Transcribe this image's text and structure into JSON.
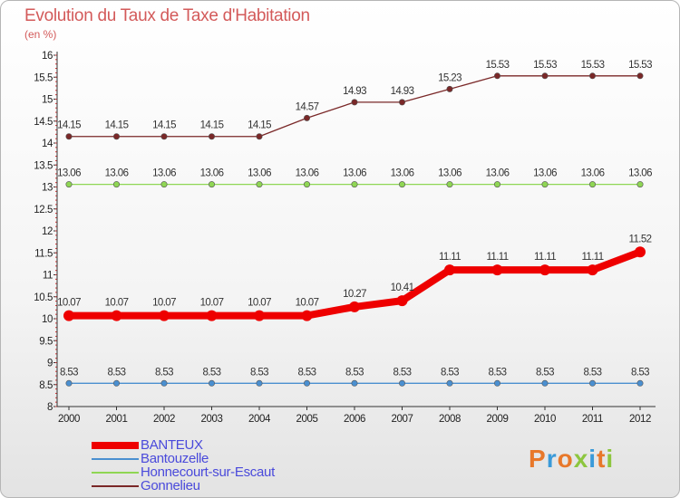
{
  "header": {
    "title": "Evolution du Taux de Taxe d'Habitation",
    "unit": "(en %)"
  },
  "logo": {
    "letters": [
      "P",
      "r",
      "o",
      "x",
      "i",
      "t",
      "i"
    ],
    "colors": [
      "#e8782a",
      "#3a9ad9",
      "#e8782a",
      "#8dc63f",
      "#3a9ad9",
      "#e8782a",
      "#8dc63f"
    ]
  },
  "chart_data": {
    "type": "line",
    "x": [
      "2000",
      "2001",
      "2002",
      "2003",
      "2004",
      "2005",
      "2006",
      "2007",
      "2008",
      "2009",
      "2010",
      "2011",
      "2012"
    ],
    "ylim": [
      8,
      16
    ],
    "yticks": [
      "8",
      "8.5",
      "9",
      "9.5",
      "10",
      "10.5",
      "11",
      "11.5",
      "12",
      "12.5",
      "13",
      "13.5",
      "14",
      "14.5",
      "15",
      "15.5",
      "16"
    ],
    "grid": false,
    "legend_position": "bottom-left",
    "series": [
      {
        "name": "BANTEUX",
        "color": "#ee0000",
        "values": [
          10.07,
          10.07,
          10.07,
          10.07,
          10.07,
          10.07,
          10.27,
          10.41,
          11.11,
          11.11,
          11.11,
          11.11,
          11.52
        ],
        "labels": [
          "10.07",
          "10.07",
          "10.07",
          "10.07",
          "10.07",
          "10.07",
          "10.27",
          "10.41",
          "11.11",
          "11.11",
          "11.11",
          "11.11",
          "11.52"
        ]
      },
      {
        "name": "Bantouzelle",
        "color": "#4a8fd0",
        "values": [
          8.53,
          8.53,
          8.53,
          8.53,
          8.53,
          8.53,
          8.53,
          8.53,
          8.53,
          8.53,
          8.53,
          8.53,
          8.53
        ],
        "labels": [
          "8.53",
          "8.53",
          "8.53",
          "8.53",
          "8.53",
          "8.53",
          "8.53",
          "8.53",
          "8.53",
          "8.53",
          "8.53",
          "8.53",
          "8.53"
        ]
      },
      {
        "name": "Honnecourt-sur-Escaut",
        "color": "#8fd654",
        "values": [
          13.06,
          13.06,
          13.06,
          13.06,
          13.06,
          13.06,
          13.06,
          13.06,
          13.06,
          13.06,
          13.06,
          13.06,
          13.06
        ],
        "labels": [
          "13.06",
          "13.06",
          "13.06",
          "13.06",
          "13.06",
          "13.06",
          "13.06",
          "13.06",
          "13.06",
          "13.06",
          "13.06",
          "13.06",
          "13.06"
        ]
      },
      {
        "name": "Gonnelieu",
        "color": "#7a2828",
        "values": [
          14.15,
          14.15,
          14.15,
          14.15,
          14.15,
          14.57,
          14.93,
          14.93,
          15.23,
          15.53,
          15.53,
          15.53,
          15.53
        ],
        "labels": [
          "14.15",
          "14.15",
          "14.15",
          "14.15",
          "14.15",
          "14.57",
          "14.93",
          "14.93",
          "15.23",
          "15.53",
          "15.53",
          "15.53",
          "15.53"
        ]
      }
    ]
  }
}
